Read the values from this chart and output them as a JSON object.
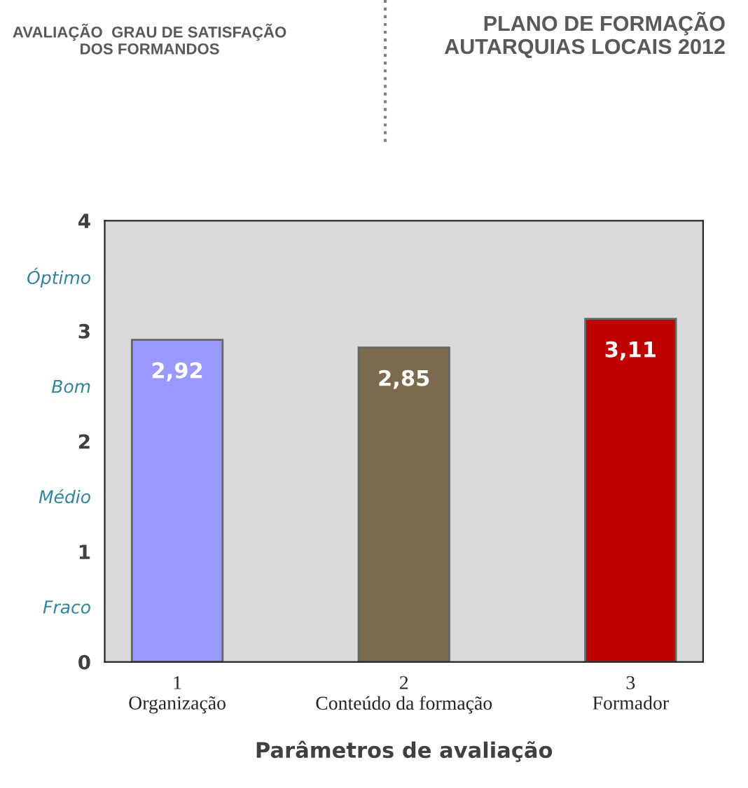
{
  "chart_data": {
    "type": "bar",
    "title": "PLANO DE FORMAÇÃO\nAUTARQUIAS LOCAIS 2012",
    "subtitle": "AVALIAÇÃO  GRAU DE SATISFAÇÃO\nDOS FORMANDOS",
    "xlabel": "Parâmetros de avaliação",
    "categories": [
      "1\nOrganização",
      "2\nConteúdo da formação",
      "3\nFormador"
    ],
    "values": [
      2.92,
      2.85,
      3.11
    ],
    "colors": [
      "#9999ff",
      "#7b6a4e",
      "#c00000"
    ],
    "value_labels": [
      "2,92",
      "2,85",
      "3,11"
    ],
    "ylim": [
      0,
      4
    ],
    "yticks": [
      0,
      {
        "value": 0.5,
        "label": "Fraco"
      },
      1,
      {
        "value": 1.5,
        "label": "Médio"
      },
      2,
      {
        "value": 2.5,
        "label": "Bom"
      },
      3,
      {
        "value": 3.5,
        "label": "Óptimo"
      },
      4
    ],
    "grid": false,
    "legend": false
  }
}
